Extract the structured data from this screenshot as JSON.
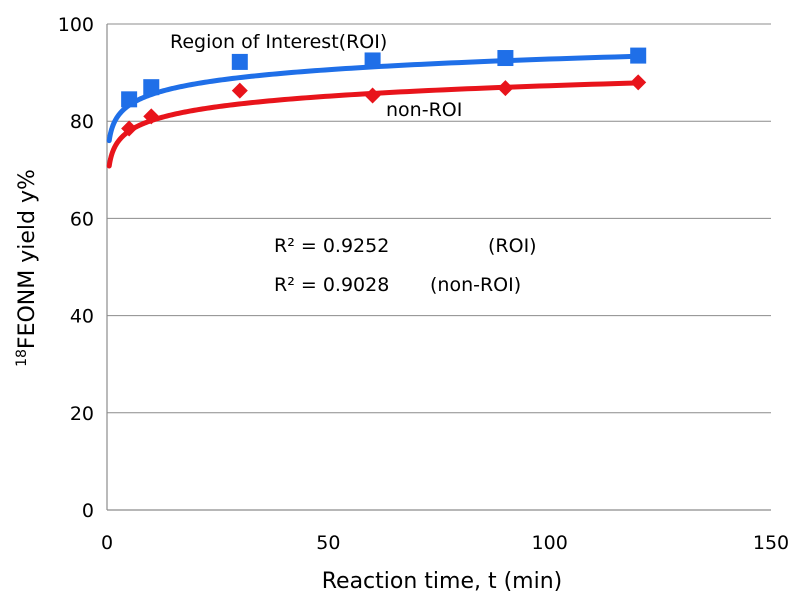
{
  "chart_data": {
    "type": "scatter",
    "title": "",
    "xlabel": "Reaction time, t (min)",
    "ylabel_sup": "18",
    "ylabel_main": "FEONM yield y%",
    "xlim": [
      0,
      150
    ],
    "ylim": [
      0,
      100
    ],
    "xticks": [
      0,
      50,
      100,
      150
    ],
    "yticks": [
      0,
      20,
      40,
      60,
      80,
      100
    ],
    "xtick_labels": [
      "0",
      "50",
      "100",
      "150"
    ],
    "ytick_labels": [
      "0",
      "20",
      "40",
      "60",
      "80",
      "100"
    ],
    "grid": "horizontal",
    "series": [
      {
        "name": "Region of Interest(ROI)",
        "marker": "square",
        "color": "#1f6fe8",
        "x": [
          5,
          10,
          30,
          60,
          90,
          120
        ],
        "y": [
          84.5,
          87,
          92.2,
          92.5,
          93,
          93.5
        ],
        "trendline": {
          "type": "log",
          "a": 78.19,
          "b": 3.17,
          "x_from": 0.5,
          "x_to": 120
        }
      },
      {
        "name": "non-ROI",
        "marker": "diamond",
        "color": "#e8141b",
        "x": [
          5,
          10,
          30,
          60,
          90,
          120
        ],
        "y": [
          78.5,
          81,
          86.3,
          85.3,
          86.8,
          88
        ],
        "trendline": {
          "type": "log",
          "a": 72.94,
          "b": 3.12,
          "x_from": 0.5,
          "x_to": 120
        }
      }
    ],
    "annotations": [
      {
        "text": "R² = 0.9252",
        "label": "(ROI)"
      },
      {
        "text": "R² = 0.9028",
        "label": "(non-ROI)"
      }
    ]
  }
}
